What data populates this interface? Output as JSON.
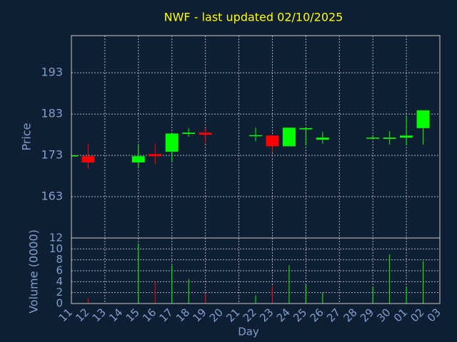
{
  "chart_data": [
    {
      "type": "candlestick",
      "title": "NWF - last updated 02/10/2025",
      "ylabel": "Price",
      "ylim": [
        153,
        202
      ],
      "yticks": [
        163,
        173,
        183,
        193
      ],
      "grid": true,
      "up_color": "#00ff00",
      "down_color": "#ff0000",
      "open": [
        172.8,
        172.8,
        null,
        null,
        171.3,
        173.3,
        173.9,
        178.2,
        178.5,
        null,
        null,
        177.7,
        177.8,
        175.2,
        179.3,
        176.8,
        null,
        null,
        177.1,
        177.0,
        177.3,
        179.6,
        null
      ],
      "high": [
        173.0,
        175.8,
        null,
        null,
        175.8,
        175.8,
        178.3,
        179.6,
        179.6,
        null,
        null,
        179.7,
        177.8,
        179.7,
        179.6,
        178.7,
        null,
        null,
        177.7,
        178.9,
        182.7,
        183.9,
        null
      ],
      "low": [
        172.8,
        169.7,
        null,
        null,
        169.9,
        170.8,
        171.4,
        177.5,
        175.9,
        null,
        null,
        176.4,
        173.7,
        175.2,
        175.4,
        175.8,
        null,
        null,
        177.0,
        175.6,
        175.4,
        175.6,
        null
      ],
      "close": [
        173.0,
        171.3,
        null,
        null,
        172.8,
        172.8,
        178.3,
        178.5,
        178.0,
        null,
        null,
        177.9,
        175.2,
        179.7,
        179.6,
        177.3,
        null,
        null,
        177.3,
        177.3,
        177.8,
        183.9,
        null
      ]
    },
    {
      "type": "bar",
      "xlabel": "Day",
      "ylabel": "Volume (0000)",
      "categories": [
        "11",
        "12",
        "13",
        "14",
        "15",
        "16",
        "17",
        "18",
        "19",
        "20",
        "21",
        "22",
        "23",
        "24",
        "25",
        "26",
        "27",
        "28",
        "29",
        "30",
        "01",
        "02",
        "03"
      ],
      "values": [
        0,
        1,
        null,
        null,
        11,
        4,
        7,
        4.5,
        1.8,
        null,
        null,
        1.5,
        3.2,
        7,
        3.4,
        2,
        null,
        null,
        3,
        9,
        3.1,
        7.8,
        null
      ],
      "ylim": [
        0,
        12
      ],
      "yticks": [
        0,
        2,
        4,
        6,
        8,
        10,
        12
      ],
      "grid": true
    }
  ]
}
